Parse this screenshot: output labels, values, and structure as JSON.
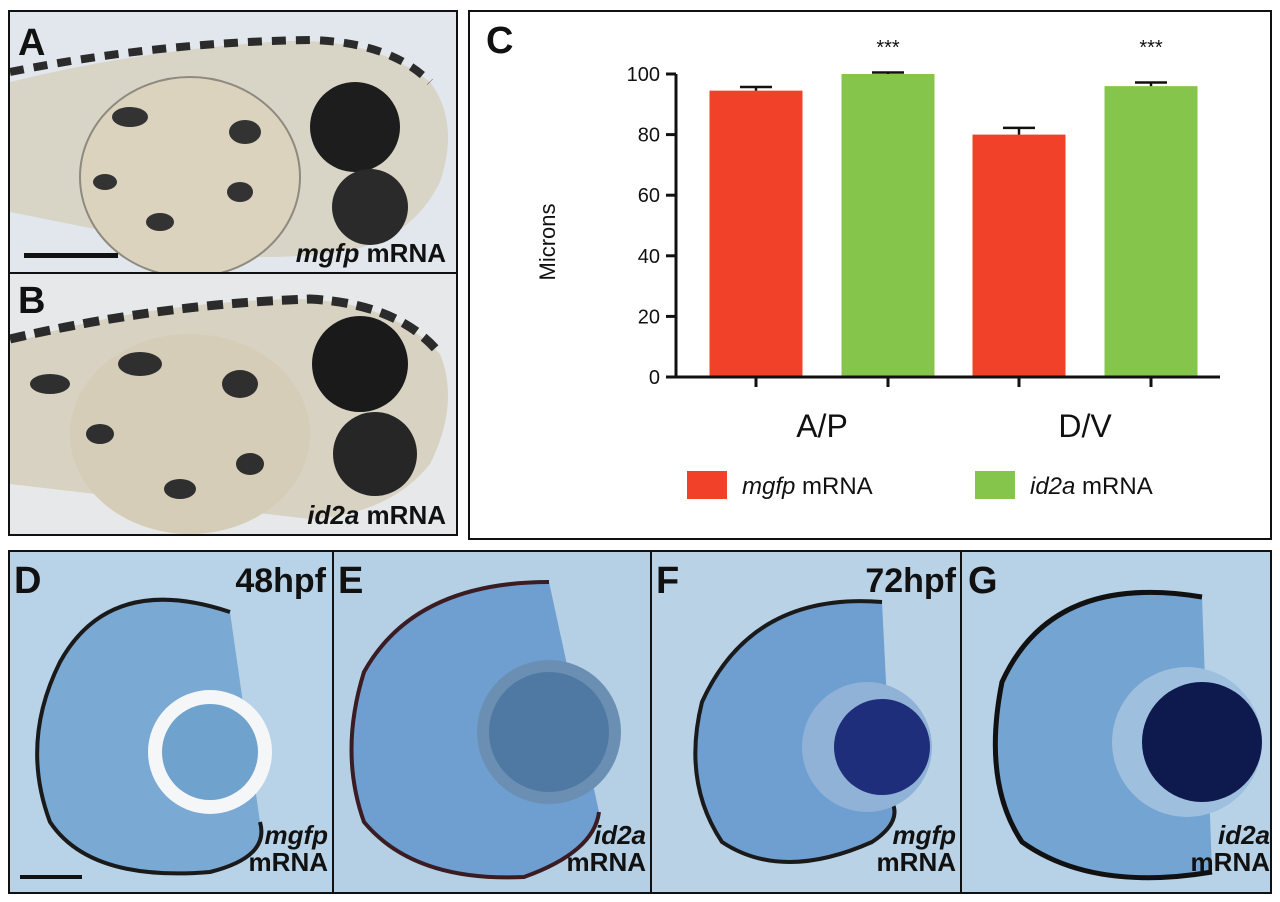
{
  "panels": {
    "A": {
      "letter": "A",
      "label_italic": "mgfp",
      "label_rest": " mRNA"
    },
    "B": {
      "letter": "B",
      "label_italic": "id2a",
      "label_rest": " mRNA"
    },
    "C": {
      "letter": "C"
    },
    "D": {
      "letter": "D",
      "stage": "48hpf",
      "label_italic": "mgfp",
      "label_rest": "mRNA"
    },
    "E": {
      "letter": "E",
      "label_italic": "id2a",
      "label_rest": "mRNA"
    },
    "F": {
      "letter": "F",
      "stage": "72hpf",
      "label_italic": "mgfp",
      "label_rest": "mRNA"
    },
    "G": {
      "letter": "G",
      "label_italic": "id2a",
      "label_rest": "mRNA"
    }
  },
  "colors": {
    "mgfp": "#f24129",
    "id2a": "#86c54c",
    "fish_bg": "#e4e8ee",
    "section_bg": "#b6d2e6"
  },
  "chart_data": {
    "type": "bar",
    "categories": [
      "A/P",
      "D/V"
    ],
    "series": [
      {
        "name_italic": "mgfp",
        "name_rest": " mRNA",
        "values": [
          94.5,
          80
        ],
        "errors": [
          1.2,
          2.2
        ],
        "color": "#f24129"
      },
      {
        "name_italic": "id2a",
        "name_rest": " mRNA",
        "values": [
          100,
          96
        ],
        "errors": [
          0.5,
          1.2
        ],
        "color": "#86c54c"
      }
    ],
    "significance": [
      "***",
      "***"
    ],
    "ylabel": "Microns",
    "xlabel": "",
    "ylim": [
      0,
      100
    ],
    "yticks": [
      0,
      20,
      40,
      60,
      80,
      100
    ],
    "legend_position": "bottom"
  }
}
